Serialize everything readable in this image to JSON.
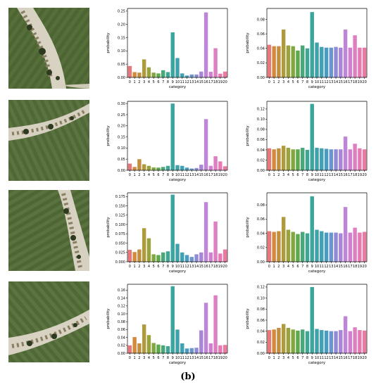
{
  "caption": "(b)",
  "palette": [
    "#e8777a",
    "#d4893e",
    "#c28f3e",
    "#b09a3e",
    "#9aa23e",
    "#80a83e",
    "#5caa4a",
    "#48a879",
    "#41a596",
    "#3ca69e",
    "#3ea2aa",
    "#41a0b2",
    "#4a9bc0",
    "#6a95cf",
    "#8f8bd6",
    "#a985d9",
    "#bd86d6",
    "#d180cf",
    "#e07ec3",
    "#e77ab2",
    "#e97aa0"
  ],
  "images": [
    {
      "name": "aerial-image-1"
    },
    {
      "name": "aerial-image-2"
    },
    {
      "name": "aerial-image-3"
    },
    {
      "name": "aerial-image-4"
    }
  ],
  "chart_data": [
    {
      "type": "bar",
      "xlabel": "category",
      "ylabel": "probability",
      "categories": [
        "0",
        "1",
        "2",
        "3",
        "4",
        "5",
        "6",
        "7",
        "8",
        "9",
        "10",
        "11",
        "12",
        "13",
        "14",
        "15",
        "16",
        "17",
        "18",
        "19",
        "20"
      ],
      "values": [
        0.043,
        0.02,
        0.018,
        0.068,
        0.038,
        0.018,
        0.015,
        0.027,
        0.02,
        0.17,
        0.073,
        0.015,
        0.007,
        0.011,
        0.011,
        0.022,
        0.245,
        0.021,
        0.11,
        0.014,
        0.022
      ],
      "ylim": [
        0,
        0.26
      ],
      "yticks": [
        "0.00",
        "0.05",
        "0.10",
        "0.15",
        "0.20",
        "0.25"
      ],
      "ytick_values": [
        0,
        0.05,
        0.1,
        0.15,
        0.2,
        0.25
      ]
    },
    {
      "type": "bar",
      "xlabel": "category",
      "ylabel": "probability",
      "categories": [
        "0",
        "1",
        "2",
        "3",
        "4",
        "5",
        "6",
        "7",
        "8",
        "9",
        "10",
        "11",
        "12",
        "13",
        "14",
        "15",
        "16",
        "17",
        "18",
        "19",
        "20"
      ],
      "values": [
        0.045,
        0.043,
        0.043,
        0.066,
        0.044,
        0.043,
        0.037,
        0.044,
        0.04,
        0.09,
        0.048,
        0.042,
        0.041,
        0.041,
        0.042,
        0.041,
        0.066,
        0.041,
        0.058,
        0.041,
        0.041
      ],
      "ylim": [
        0,
        0.095
      ],
      "yticks": [
        "0.00",
        "0.02",
        "0.04",
        "0.06",
        "0.08"
      ],
      "ytick_values": [
        0,
        0.02,
        0.04,
        0.06,
        0.08
      ]
    },
    {
      "type": "bar",
      "xlabel": "category",
      "ylabel": "probability",
      "categories": [
        "0",
        "1",
        "2",
        "3",
        "4",
        "5",
        "6",
        "7",
        "8",
        "9",
        "10",
        "11",
        "12",
        "13",
        "14",
        "15",
        "16",
        "17",
        "18",
        "19",
        "20"
      ],
      "values": [
        0.03,
        0.015,
        0.05,
        0.027,
        0.02,
        0.013,
        0.012,
        0.015,
        0.02,
        0.3,
        0.023,
        0.02,
        0.012,
        0.008,
        0.01,
        0.025,
        0.23,
        0.02,
        0.063,
        0.04,
        0.018
      ],
      "ylim": [
        0,
        0.31
      ],
      "yticks": [
        "0.00",
        "0.05",
        "0.10",
        "0.15",
        "0.20",
        "0.25",
        "0.30"
      ],
      "ytick_values": [
        0,
        0.05,
        0.1,
        0.15,
        0.2,
        0.25,
        0.3
      ]
    },
    {
      "type": "bar",
      "xlabel": "category",
      "ylabel": "probability",
      "categories": [
        "0",
        "1",
        "2",
        "3",
        "4",
        "5",
        "6",
        "7",
        "8",
        "9",
        "10",
        "11",
        "12",
        "13",
        "14",
        "15",
        "16",
        "17",
        "18",
        "19",
        "20"
      ],
      "values": [
        0.043,
        0.041,
        0.043,
        0.048,
        0.044,
        0.041,
        0.041,
        0.044,
        0.04,
        0.13,
        0.044,
        0.043,
        0.042,
        0.041,
        0.041,
        0.041,
        0.066,
        0.041,
        0.052,
        0.043,
        0.041
      ],
      "ylim": [
        0,
        0.135
      ],
      "yticks": [
        "0.00",
        "0.02",
        "0.04",
        "0.06",
        "0.08",
        "0.10",
        "0.12"
      ],
      "ytick_values": [
        0,
        0.02,
        0.04,
        0.06,
        0.08,
        0.1,
        0.12
      ]
    },
    {
      "type": "bar",
      "xlabel": "category",
      "ylabel": "probability",
      "categories": [
        "0",
        "1",
        "2",
        "3",
        "4",
        "5",
        "6",
        "7",
        "8",
        "9",
        "10",
        "11",
        "12",
        "13",
        "14",
        "15",
        "16",
        "17",
        "18",
        "19",
        "20"
      ],
      "values": [
        0.032,
        0.026,
        0.033,
        0.09,
        0.063,
        0.02,
        0.018,
        0.025,
        0.028,
        0.18,
        0.048,
        0.025,
        0.018,
        0.013,
        0.02,
        0.025,
        0.16,
        0.025,
        0.108,
        0.022,
        0.033
      ],
      "ylim": [
        0,
        0.185
      ],
      "yticks": [
        "0.000",
        "0.025",
        "0.050",
        "0.075",
        "0.100",
        "0.125",
        "0.150",
        "0.175"
      ],
      "ytick_values": [
        0,
        0.025,
        0.05,
        0.075,
        0.1,
        0.125,
        0.15,
        0.175
      ]
    },
    {
      "type": "bar",
      "xlabel": "category",
      "ylabel": "probability",
      "categories": [
        "0",
        "1",
        "2",
        "3",
        "4",
        "5",
        "6",
        "7",
        "8",
        "9",
        "10",
        "11",
        "12",
        "13",
        "14",
        "15",
        "16",
        "17",
        "18",
        "19",
        "20"
      ],
      "values": [
        0.043,
        0.042,
        0.043,
        0.063,
        0.045,
        0.042,
        0.039,
        0.042,
        0.04,
        0.092,
        0.045,
        0.043,
        0.041,
        0.041,
        0.041,
        0.04,
        0.077,
        0.041,
        0.048,
        0.041,
        0.042
      ],
      "ylim": [
        0,
        0.097
      ],
      "yticks": [
        "0.00",
        "0.02",
        "0.04",
        "0.06",
        "0.08"
      ],
      "ytick_values": [
        0,
        0.02,
        0.04,
        0.06,
        0.08
      ]
    },
    {
      "type": "bar",
      "xlabel": "category",
      "ylabel": "probability",
      "categories": [
        "0",
        "1",
        "2",
        "3",
        "4",
        "5",
        "6",
        "7",
        "8",
        "9",
        "10",
        "11",
        "12",
        "13",
        "14",
        "15",
        "16",
        "17",
        "18",
        "19",
        "20"
      ],
      "values": [
        0.02,
        0.041,
        0.025,
        0.073,
        0.046,
        0.026,
        0.022,
        0.02,
        0.018,
        0.17,
        0.06,
        0.025,
        0.012,
        0.013,
        0.014,
        0.058,
        0.128,
        0.025,
        0.147,
        0.02,
        0.021
      ],
      "ylim": [
        0,
        0.175
      ],
      "yticks": [
        "0.00",
        "0.02",
        "0.04",
        "0.06",
        "0.08",
        "0.10",
        "0.12",
        "0.14",
        "0.16"
      ],
      "ytick_values": [
        0,
        0.02,
        0.04,
        0.06,
        0.08,
        0.1,
        0.12,
        0.14,
        0.16
      ]
    },
    {
      "type": "bar",
      "xlabel": "category",
      "ylabel": "probability",
      "categories": [
        "0",
        "1",
        "2",
        "3",
        "4",
        "5",
        "6",
        "7",
        "8",
        "9",
        "10",
        "11",
        "12",
        "13",
        "14",
        "15",
        "16",
        "17",
        "18",
        "19",
        "20"
      ],
      "values": [
        0.042,
        0.043,
        0.046,
        0.053,
        0.046,
        0.043,
        0.041,
        0.043,
        0.04,
        0.12,
        0.044,
        0.042,
        0.041,
        0.04,
        0.04,
        0.042,
        0.067,
        0.04,
        0.047,
        0.042,
        0.041
      ],
      "ylim": [
        0,
        0.125
      ],
      "yticks": [
        "0.00",
        "0.02",
        "0.04",
        "0.06",
        "0.08",
        "0.10",
        "0.12"
      ],
      "ytick_values": [
        0,
        0.02,
        0.04,
        0.06,
        0.08,
        0.1,
        0.12
      ]
    }
  ]
}
